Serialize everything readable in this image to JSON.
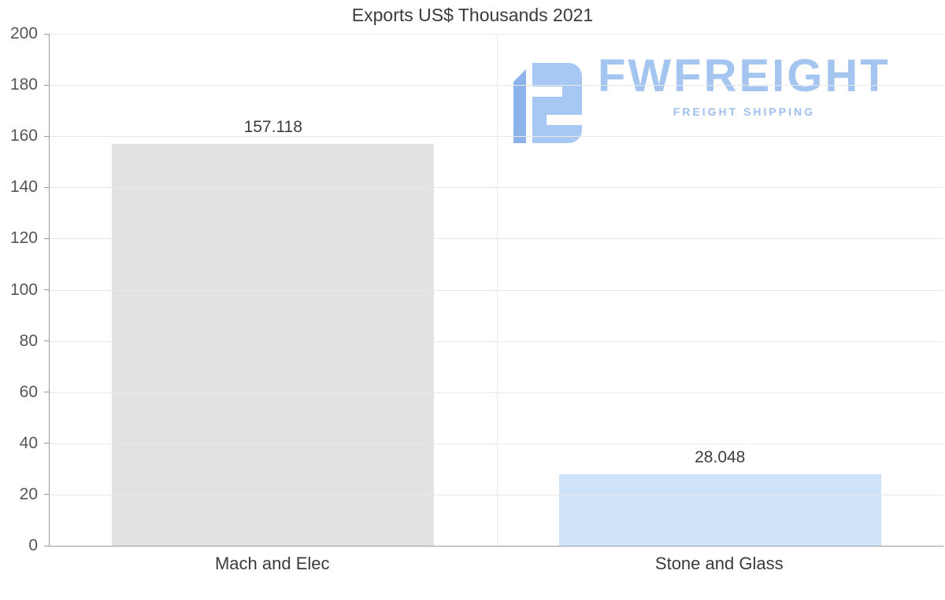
{
  "chart_data": {
    "type": "bar",
    "title": "Exports US$ Thousands 2021",
    "categories": [
      "Mach and Elec",
      "Stone and Glass"
    ],
    "values": [
      157.118,
      28.048
    ],
    "value_labels": [
      "157.118",
      "28.048"
    ],
    "bar_colors": [
      "#e2e2e2",
      "#cfe3f8"
    ],
    "ylim": [
      0,
      200
    ],
    "yticks": [
      0,
      20,
      40,
      60,
      80,
      100,
      120,
      140,
      160,
      180,
      200
    ],
    "xlabel": "",
    "ylabel": "",
    "grid": true,
    "legend": "none"
  },
  "watermark": {
    "brand": "FWFREIGHT",
    "tagline": "FREIGHT SHIPPING",
    "brand_color": "#a5c5f1",
    "icon": "freight-logo-icon"
  }
}
